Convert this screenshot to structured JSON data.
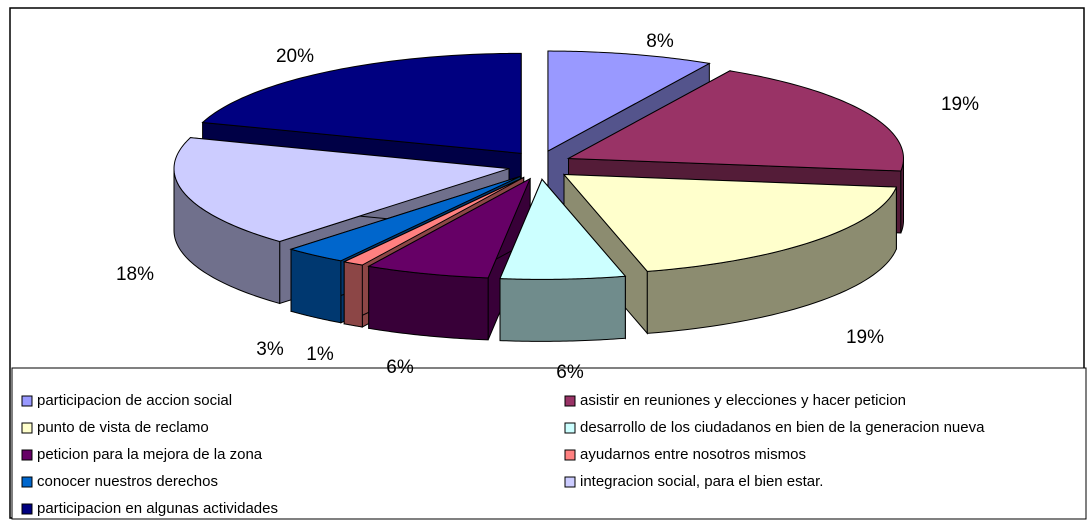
{
  "chart_data": {
    "type": "pie3d",
    "categories": [
      "participacion de accion social",
      "asistir en reuniones y elecciones y hacer peticion",
      "punto de vista de reclamo",
      "desarrollo de los ciudadanos en bien de la generacion nueva",
      "peticion para la mejora de la zona",
      "ayudarnos entre nosotros mismos",
      "conocer nuestros derechos",
      "integracion social, para el bien estar.",
      "participacion en algunas actividades"
    ],
    "values": [
      8,
      19,
      19,
      6,
      6,
      1,
      3,
      18,
      20
    ],
    "value_labels": [
      "8%",
      "19%",
      "19%",
      "6%",
      "6%",
      "1%",
      "3%",
      "18%",
      "20%"
    ],
    "colors": [
      "#9999ff",
      "#993366",
      "#ffffcc",
      "#ccffff",
      "#660066",
      "#ff8080",
      "#0066cc",
      "#ccccff",
      "#000080"
    ]
  }
}
